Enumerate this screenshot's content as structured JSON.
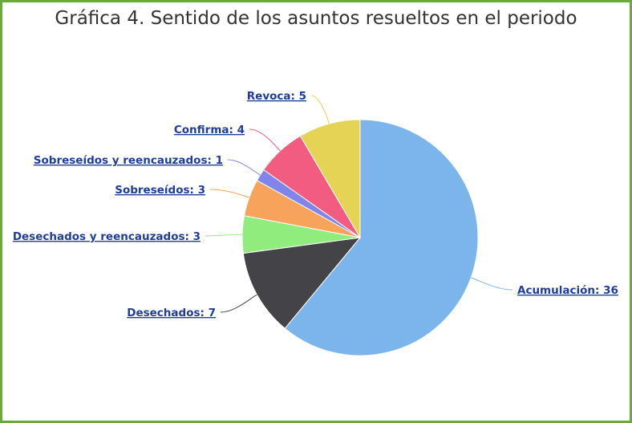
{
  "chart_data": {
    "type": "pie",
    "title": "Gráfica 4. Sentido de los asuntos resueltos en el periodo",
    "slices": [
      {
        "label": "Acumulación",
        "value": 36,
        "color": "#7cb5ec",
        "display": "Acumulación: 36"
      },
      {
        "label": "Desechados",
        "value": 7,
        "color": "#434348",
        "display": "Desechados: 7"
      },
      {
        "label": "Desechados y reencauzados",
        "value": 3,
        "color": "#90ed7d",
        "display": "Desechados y reencauzados: 3"
      },
      {
        "label": "Sobreseídos",
        "value": 3,
        "color": "#f7a35c",
        "display": "Sobreseídos: 3"
      },
      {
        "label": "Sobreseídos y reencauzados",
        "value": 1,
        "color": "#8085e9",
        "display": "Sobreseídos y reencauzados: 1"
      },
      {
        "label": "Confirma",
        "value": 4,
        "color": "#f15c80",
        "display": "Confirma: 4"
      },
      {
        "label": "Revoca",
        "value": 5,
        "color": "#e4d354",
        "display": "Revoca: 5"
      }
    ],
    "start_angle": "top",
    "direction": "clockwise",
    "legend": "none"
  }
}
